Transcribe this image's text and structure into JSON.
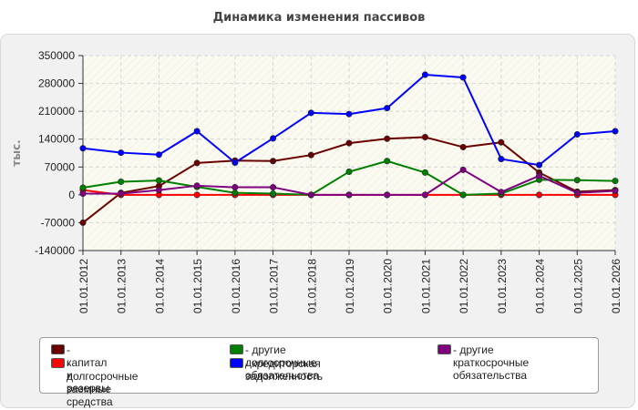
{
  "chart_data": {
    "type": "line",
    "title": "Динамика изменения пассивов",
    "ylabel": "тыс.",
    "xlabel": "",
    "ylim": [
      -140000,
      350000
    ],
    "yticks": [
      350000,
      280000,
      210000,
      140000,
      70000,
      0,
      -70000,
      -140000
    ],
    "categories": [
      "01.01.2012",
      "01.01.2013",
      "01.01.2014",
      "01.01.2015",
      "01.01.2016",
      "01.01.2017",
      "01.01.2018",
      "01.01.2019",
      "01.01.2020",
      "01.01.2021",
      "01.01.2022",
      "01.01.2023",
      "01.01.2024",
      "01.01.2025",
      "01.01.2026"
    ],
    "grid": true,
    "legend_position": "bottom",
    "series": [
      {
        "name": "капитал и резервы",
        "color": "#6b0000",
        "values": [
          -70000,
          5000,
          22000,
          80000,
          86000,
          85000,
          100000,
          130000,
          141000,
          145000,
          120000,
          132000,
          56000,
          8000,
          12000
        ]
      },
      {
        "name": "долгосрочные заемные\nсредства",
        "color": "#ff0000",
        "values": [
          12000,
          0,
          0,
          0,
          0,
          0,
          0,
          0,
          0,
          0,
          0,
          0,
          0,
          0,
          0
        ]
      },
      {
        "name": "другие долгосрочные\nобязательства",
        "color": "#008000",
        "values": [
          18000,
          33000,
          36000,
          20000,
          5000,
          3000,
          0,
          58000,
          85000,
          56000,
          0,
          3000,
          38000,
          37000,
          35000
        ]
      },
      {
        "name": "кредиторская задолженность",
        "color": "#0000ff",
        "values": [
          117000,
          106000,
          101000,
          160000,
          81000,
          142000,
          206000,
          203000,
          218000,
          302000,
          295000,
          90000,
          75000,
          152000,
          160000
        ]
      },
      {
        "name": "другие краткосрочные\nобязательства",
        "color": "#800080",
        "values": [
          3000,
          3000,
          12000,
          23000,
          19000,
          19000,
          0,
          0,
          0,
          0,
          63000,
          7000,
          48000,
          5000,
          10000
        ]
      }
    ]
  },
  "legend_order": [
    0,
    2,
    4,
    1,
    3
  ]
}
